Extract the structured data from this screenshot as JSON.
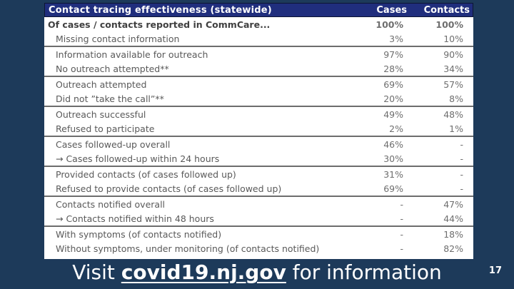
{
  "slide": {
    "background": "#1d3a5a",
    "page_number": "17",
    "footer": {
      "prefix": "Visit ",
      "link": "covid19.nj.gov",
      "suffix": "  for information"
    }
  },
  "table": {
    "header": {
      "title": "Contact tracing effectiveness (statewide)",
      "col_cases": "Cases",
      "col_contacts": "Contacts",
      "header_bg": "#202e7d",
      "header_text_color": "#ffffff"
    },
    "groups": [
      {
        "rows": [
          {
            "label": "Of cases / contacts reported in CommCare...",
            "cases": "100%",
            "contacts": "100%",
            "emphasis": true,
            "indent": false
          },
          {
            "label": "Missing contact information",
            "cases": "3%",
            "contacts": "10%"
          }
        ]
      },
      {
        "rows": [
          {
            "label": "Information available for outreach",
            "cases": "97%",
            "contacts": "90%"
          },
          {
            "label": "No outreach attempted**",
            "cases": "28%",
            "contacts": "34%"
          }
        ]
      },
      {
        "rows": [
          {
            "label": "Outreach attempted",
            "cases": "69%",
            "contacts": "57%"
          },
          {
            "label": "Did not ”take the call”**",
            "cases": "20%",
            "contacts": "8%"
          }
        ]
      },
      {
        "rows": [
          {
            "label": "Outreach successful",
            "cases": "49%",
            "contacts": "48%"
          },
          {
            "label": "Refused to participate",
            "cases": "2%",
            "contacts": "1%"
          }
        ]
      },
      {
        "rows": [
          {
            "label": "Cases followed-up overall",
            "cases": "46%",
            "contacts": "-"
          },
          {
            "label": "→ Cases followed-up within 24 hours",
            "cases": "30%",
            "contacts": "-"
          }
        ]
      },
      {
        "rows": [
          {
            "label": "Provided contacts (of cases followed up)",
            "cases": "31%",
            "contacts": "-"
          },
          {
            "label": "Refused to provide contacts (of cases followed up)",
            "cases": "69%",
            "contacts": "-"
          }
        ]
      },
      {
        "rows": [
          {
            "label": "Contacts notified overall",
            "cases": "-",
            "contacts": "47%"
          },
          {
            "label": "→ Contacts notified within 48 hours",
            "cases": "-",
            "contacts": "44%"
          }
        ]
      },
      {
        "rows": [
          {
            "label": "With symptoms (of contacts notified)",
            "cases": "-",
            "contacts": "18%"
          },
          {
            "label": "Without symptoms, under monitoring (of contacts notified)",
            "cases": "-",
            "contacts": "82%"
          }
        ]
      }
    ]
  }
}
